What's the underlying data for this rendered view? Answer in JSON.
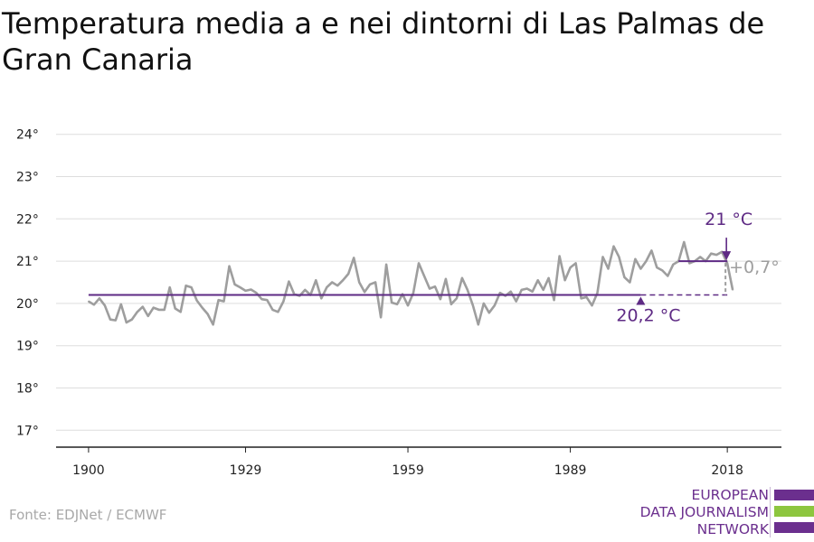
{
  "title": "Temperatura media a e nei dintorni di Las Palmas de Gran Canaria",
  "source": "Fonte: EDJNet / ECMWF",
  "logo": {
    "line1": "EUROPEAN",
    "line2": "DATA JOURNALISM",
    "line3": "NETWORK",
    "colors": [
      "#6b2f8e",
      "#8dc63f",
      "#6b2f8e"
    ]
  },
  "colors": {
    "series": "#9e9e9e",
    "average": "#5e2a84",
    "grid": "#dddddd",
    "axis": "#222222"
  },
  "chart_data": {
    "type": "line",
    "title": "Temperatura media a e nei dintorni di Las Palmas de Gran Canaria",
    "xlabel": "",
    "ylabel": "",
    "xlim": [
      1894,
      2028
    ],
    "ylim": [
      16.6,
      24.4
    ],
    "grid": "horizontal",
    "x_ticks": [
      {
        "value": 1900,
        "label": "1900"
      },
      {
        "value": 1929,
        "label": "1929"
      },
      {
        "value": 1959,
        "label": "1959"
      },
      {
        "value": 1989,
        "label": "1989"
      },
      {
        "value": 2018,
        "label": "2018"
      }
    ],
    "y_ticks": [
      {
        "value": 17,
        "label": "17°"
      },
      {
        "value": 18,
        "label": "18°"
      },
      {
        "value": 19,
        "label": "19°"
      },
      {
        "value": 20,
        "label": "20°"
      },
      {
        "value": 21,
        "label": "21°"
      },
      {
        "value": 22,
        "label": "22°"
      },
      {
        "value": 23,
        "label": "23°"
      },
      {
        "value": 24,
        "label": "24°"
      }
    ],
    "series": [
      {
        "x_start": 1900,
        "x_end": 2019,
        "values": [
          20.05,
          19.97,
          20.12,
          19.95,
          19.62,
          19.6,
          19.98,
          19.55,
          19.62,
          19.8,
          19.92,
          19.7,
          19.9,
          19.85,
          19.85,
          20.38,
          19.88,
          19.8,
          20.42,
          20.38,
          20.07,
          19.9,
          19.75,
          19.5,
          20.08,
          20.05,
          20.88,
          20.45,
          20.38,
          20.3,
          20.33,
          20.25,
          20.1,
          20.08,
          19.85,
          19.8,
          20.05,
          20.52,
          20.22,
          20.18,
          20.32,
          20.2,
          20.55,
          20.12,
          20.38,
          20.5,
          20.42,
          20.55,
          20.7,
          21.08,
          20.5,
          20.27,
          20.45,
          20.5,
          19.67,
          20.92,
          20.02,
          19.98,
          20.22,
          19.95,
          20.25,
          20.95,
          20.65,
          20.35,
          20.4,
          20.1,
          20.58,
          19.98,
          20.12,
          20.6,
          20.32,
          19.95,
          19.5,
          20.0,
          19.78,
          19.95,
          20.25,
          20.18,
          20.28,
          20.05,
          20.32,
          20.35,
          20.28,
          20.55,
          20.32,
          20.6,
          20.08,
          21.12,
          20.55,
          20.85,
          20.95,
          20.12,
          20.15,
          19.95,
          20.25,
          21.1,
          20.82,
          21.35,
          21.1,
          20.62,
          20.5,
          21.05,
          20.82,
          21.0,
          21.25,
          20.85,
          20.78,
          20.65,
          20.92,
          21.0,
          21.45,
          20.95,
          21.0,
          21.1,
          21.0,
          21.18,
          21.15,
          21.22,
          20.95,
          20.32
        ]
      }
    ],
    "reference_lines": [
      {
        "label": "20,2 °C",
        "value": 20.2,
        "x_start": 1900,
        "x_end": 2002
      },
      {
        "label": "21 °C",
        "value": 21.0,
        "x_start": 2009,
        "x_end": 2018
      }
    ],
    "difference_annotation": {
      "label": "+0,7°",
      "from": 20.2,
      "to": 21.0,
      "x": 2018
    }
  }
}
